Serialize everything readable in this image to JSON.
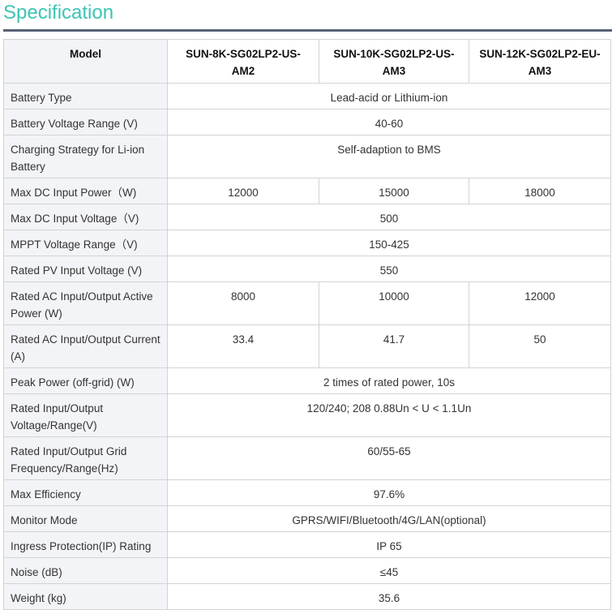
{
  "title": "Specification",
  "colors": {
    "title": "#3cc4b4",
    "rule": "#566273",
    "label_bg": "#f3f4f7"
  },
  "table": {
    "header": [
      "Model",
      "SUN-8K-SG02LP2-US-AM2",
      "SUN-10K-SG02LP2-US-AM3",
      "SUN-12K-SG02LP2-EU-AM3"
    ],
    "rows": [
      {
        "label": "Battery Type",
        "values": [
          "Lead-acid or Lithium-ion"
        ]
      },
      {
        "label": "Battery Voltage Range (V)",
        "values": [
          "40-60"
        ]
      },
      {
        "label": "Charging Strategy for Li-ion Battery",
        "values": [
          "Self-adaption to BMS"
        ]
      },
      {
        "label": "Max DC Input Power（W)",
        "values": [
          "12000",
          "15000",
          "18000"
        ]
      },
      {
        "label": "Max DC Input Voltage（V)",
        "values": [
          "500"
        ]
      },
      {
        "label": "MPPT Voltage Range（V)",
        "values": [
          "150-425"
        ]
      },
      {
        "label": "Rated PV Input Voltage (V)",
        "values": [
          "550"
        ]
      },
      {
        "label": "Rated AC Input/Output Active Power (W)",
        "values": [
          "8000",
          "10000",
          "12000"
        ]
      },
      {
        "label": "Rated AC Input/Output Current (A)",
        "values": [
          "33.4",
          "41.7",
          "50"
        ]
      },
      {
        "label": "Peak Power (off-grid) (W)",
        "values": [
          "2 times of rated power, 10s"
        ]
      },
      {
        "label": "Rated Input/Output Voltage/Range(V)",
        "values": [
          "120/240; 208 0.88Un < U < 1.1Un"
        ]
      },
      {
        "label": "Rated Input/Output Grid Frequency/Range(Hz)",
        "values": [
          "60/55-65"
        ]
      },
      {
        "label": "Max Efficiency",
        "values": [
          "97.6%"
        ]
      },
      {
        "label": "Monitor Mode",
        "values": [
          "GPRS/WIFI/Bluetooth/4G/LAN(optional)"
        ]
      },
      {
        "label": "Ingress Protection(IP) Rating",
        "values": [
          "IP 65"
        ]
      },
      {
        "label": "Noise (dB)",
        "values": [
          "≤45"
        ]
      },
      {
        "label": "Weight (kg)",
        "values": [
          "35.6"
        ]
      }
    ]
  }
}
